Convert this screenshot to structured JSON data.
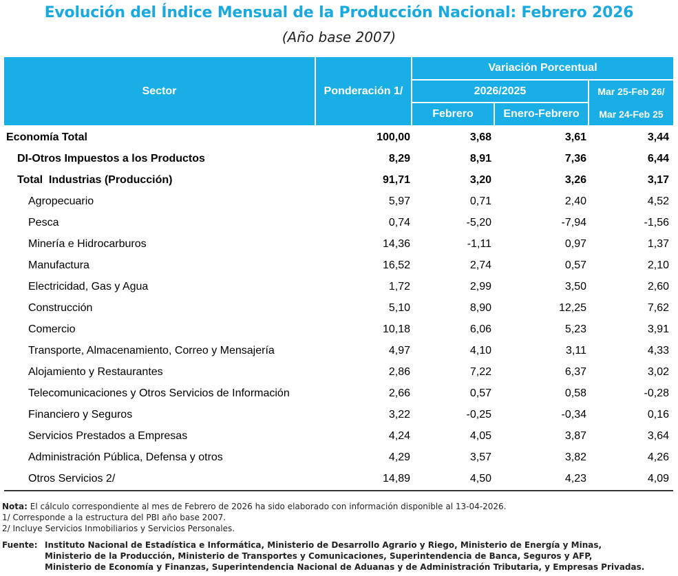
{
  "title": "Evolución del Índice Mensual de la Producción Nacional: Febrero 2026",
  "subtitle": "(Año base 2007)",
  "header": {
    "sector": "Sector",
    "ponderacion": "Ponderación 1/",
    "variacion": "Variación Porcentual",
    "periodo": "2026/2025",
    "febrero": "Febrero",
    "enero_febrero": "Enero-Febrero",
    "anual_1": "Mar 25-Feb 26/",
    "anual_2": "Mar 24-Feb 25"
  },
  "rows": [
    {
      "sector": "Economía Total",
      "ponderacion": "100,00",
      "febrero": "3,68",
      "enero_febrero": "3,61",
      "anual": "3,44"
    },
    {
      "sector": "DI-Otros Impuestos a los Productos",
      "ponderacion": "8,29",
      "febrero": "8,91",
      "enero_febrero": "7,36",
      "anual": "6,44"
    },
    {
      "sector": "Total  Industrias (Producción)",
      "ponderacion": "91,71",
      "febrero": "3,20",
      "enero_febrero": "3,26",
      "anual": "3,17"
    },
    {
      "sector": "Agropecuario",
      "ponderacion": "5,97",
      "febrero": "0,71",
      "enero_febrero": "2,40",
      "anual": "4,52"
    },
    {
      "sector": "Pesca",
      "ponderacion": "0,74",
      "febrero": "-5,20",
      "enero_febrero": "-7,94",
      "anual": "-1,56"
    },
    {
      "sector": "Minería e Hidrocarburos",
      "ponderacion": "14,36",
      "febrero": "-1,11",
      "enero_febrero": "0,97",
      "anual": "1,37"
    },
    {
      "sector": "Manufactura",
      "ponderacion": "16,52",
      "febrero": "2,74",
      "enero_febrero": "0,57",
      "anual": "2,10"
    },
    {
      "sector": "Electricidad, Gas y Agua",
      "ponderacion": "1,72",
      "febrero": "2,99",
      "enero_febrero": "3,50",
      "anual": "2,60"
    },
    {
      "sector": "Construcción",
      "ponderacion": "5,10",
      "febrero": "8,90",
      "enero_febrero": "12,25",
      "anual": "7,62"
    },
    {
      "sector": "Comercio",
      "ponderacion": "10,18",
      "febrero": "6,06",
      "enero_febrero": "5,23",
      "anual": "3,91"
    },
    {
      "sector": "Transporte, Almacenamiento, Correo y Mensajería",
      "ponderacion": "4,97",
      "febrero": "4,10",
      "enero_febrero": "3,11",
      "anual": "4,33"
    },
    {
      "sector": "Alojamiento y Restaurantes",
      "ponderacion": "2,86",
      "febrero": "7,22",
      "enero_febrero": "6,37",
      "anual": "3,02"
    },
    {
      "sector": "Telecomunicaciones y Otros Servicios de Información",
      "ponderacion": "2,66",
      "febrero": "0,57",
      "enero_febrero": "0,58",
      "anual": "-0,28"
    },
    {
      "sector": "Financiero y Seguros",
      "ponderacion": "3,22",
      "febrero": "-0,25",
      "enero_febrero": "-0,34",
      "anual": "0,16"
    },
    {
      "sector": "Servicios Prestados a Empresas",
      "ponderacion": "4,24",
      "febrero": "4,05",
      "enero_febrero": "3,87",
      "anual": "3,64"
    },
    {
      "sector": "Administración Pública, Defensa y otros",
      "ponderacion": "4,29",
      "febrero": "3,57",
      "enero_febrero": "3,82",
      "anual": "4,26"
    },
    {
      "sector": "Otros Servicios 2/",
      "ponderacion": "14,89",
      "febrero": "4,50",
      "enero_febrero": "4,23",
      "anual": "4,09"
    }
  ],
  "notes": {
    "nota_label": "Nota:",
    "nota_text": "El cálculo correspondiente al mes de Febrero de 2026 ha sido elaborado con información disponible al 13-04-2026.",
    "n1": "1/ Corresponde a la estructura del PBI año base 2007.",
    "n2": "2/ Incluye Servicios Inmobiliarios y Servicios Personales.",
    "fuente_label": "Fuente:",
    "fuente_1": "Instituto Nacional de Estadística e Informática, Ministerio de Desarrollo Agrario y Riego, Ministerio de Energía y Minas,",
    "fuente_2": "Ministerio de la Producción, Ministerio de Transportes y Comunicaciones, Superintendencia de Banca, Seguros y AFP,",
    "fuente_3": "Ministerio de Economía y Finanzas, Superintendencia Nacional de Aduanas y de Administración Tributaria, y Empresas Privadas."
  },
  "colors": {
    "header_bg": "#1aaee6",
    "title": "#1aa9de"
  }
}
